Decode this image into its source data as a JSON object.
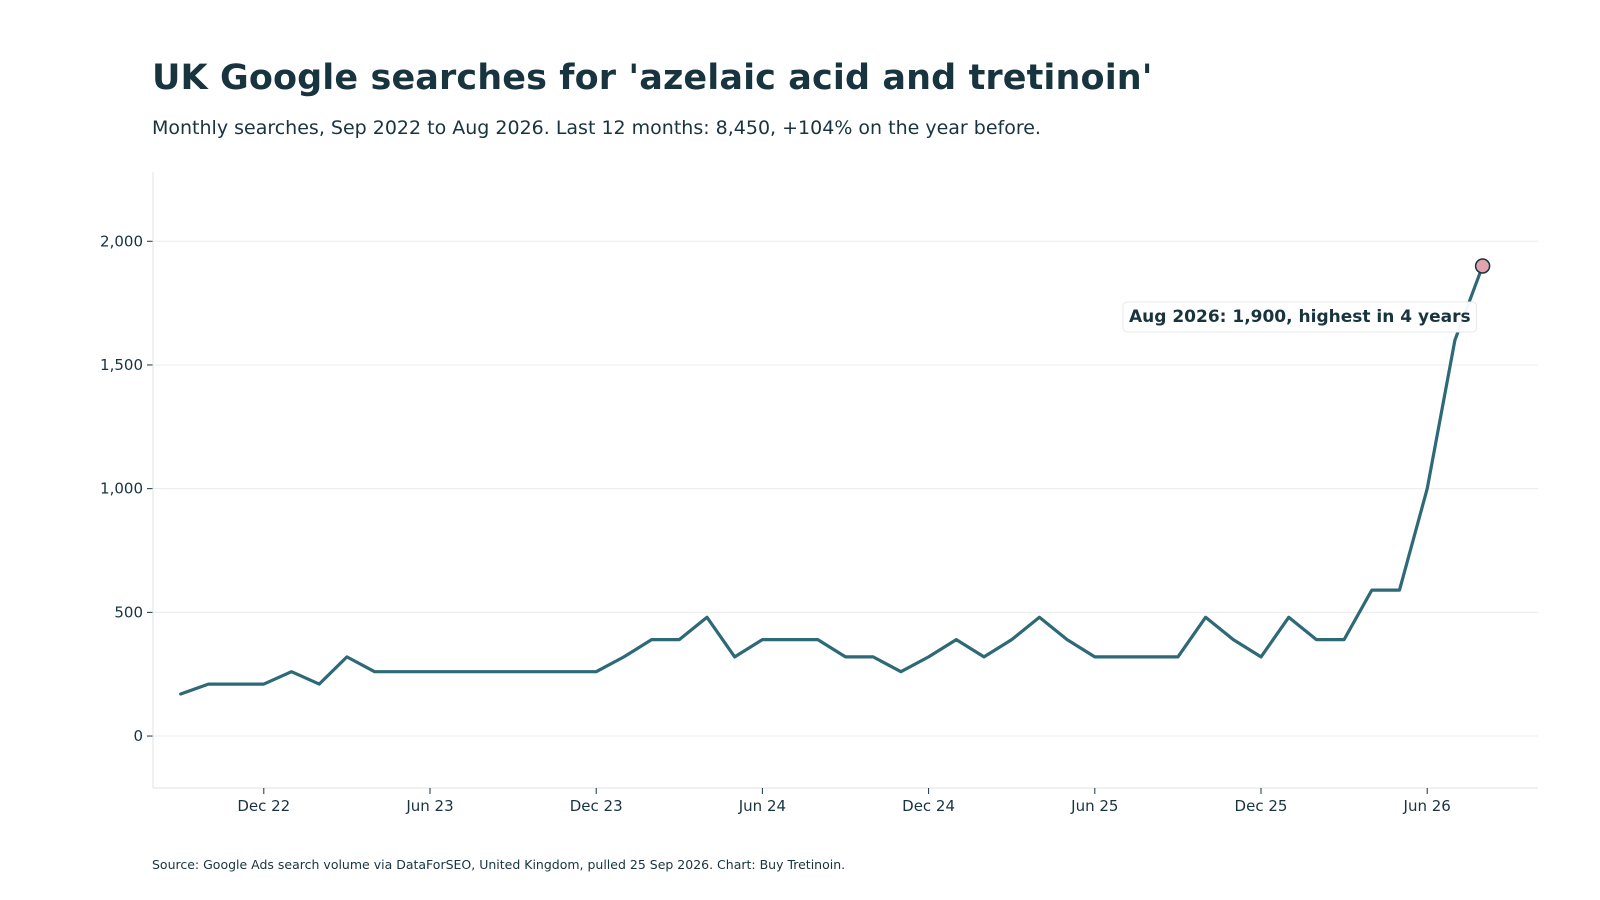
{
  "chart_data": {
    "type": "line",
    "title": "UK Google searches for 'azelaic acid and tretinoin'",
    "subtitle": "Monthly searches, Sep 2022 to Aug 2026. Last 12 months: 8,450, +104% on the year before.",
    "source": "Source: Google Ads search volume via DataForSEO, United Kingdom, pulled 25 Sep 2026. Chart: Buy Tretinoin.",
    "x": [
      "2022-09",
      "2022-10",
      "2022-11",
      "2022-12",
      "2023-01",
      "2023-02",
      "2023-03",
      "2023-04",
      "2023-05",
      "2023-06",
      "2023-07",
      "2023-08",
      "2023-09",
      "2023-10",
      "2023-11",
      "2023-12",
      "2024-01",
      "2024-02",
      "2024-03",
      "2024-04",
      "2024-05",
      "2024-06",
      "2024-07",
      "2024-08",
      "2024-09",
      "2024-10",
      "2024-11",
      "2024-12",
      "2025-01",
      "2025-02",
      "2025-03",
      "2025-04",
      "2025-05",
      "2025-06",
      "2025-07",
      "2025-08",
      "2025-09",
      "2025-10",
      "2025-11",
      "2025-12",
      "2026-01",
      "2026-02",
      "2026-03",
      "2026-04",
      "2026-05",
      "2026-06",
      "2026-07",
      "2026-08"
    ],
    "series": [
      {
        "values": [
          170,
          210,
          210,
          210,
          260,
          210,
          320,
          260,
          260,
          260,
          260,
          260,
          260,
          260,
          260,
          260,
          320,
          390,
          390,
          480,
          320,
          390,
          390,
          390,
          320,
          320,
          260,
          320,
          390,
          320,
          390,
          480,
          390,
          320,
          320,
          320,
          320,
          480,
          390,
          320,
          480,
          390,
          390,
          590,
          590,
          1000,
          1600,
          1900
        ]
      }
    ],
    "xlim": [
      "2022-08",
      "2026-10"
    ],
    "ylim": [
      -210,
      2280
    ],
    "x_ticks": [
      {
        "date": "2022-12",
        "label": "Dec 22"
      },
      {
        "date": "2023-06",
        "label": "Jun 23"
      },
      {
        "date": "2023-12",
        "label": "Dec 23"
      },
      {
        "date": "2024-06",
        "label": "Jun 24"
      },
      {
        "date": "2024-12",
        "label": "Dec 24"
      },
      {
        "date": "2025-06",
        "label": "Jun 25"
      },
      {
        "date": "2025-12",
        "label": "Dec 25"
      },
      {
        "date": "2026-06",
        "label": "Jun 26"
      }
    ],
    "y_ticks": [
      {
        "value": 0,
        "label": "0"
      },
      {
        "value": 500,
        "label": "500"
      },
      {
        "value": 1000,
        "label": "1,000"
      },
      {
        "value": 1500,
        "label": "1,500"
      },
      {
        "value": 2000,
        "label": "2,000"
      }
    ],
    "grid": "horizontal",
    "legend": "none",
    "annotation": {
      "date": "2026-08",
      "value": 1900,
      "text": "Aug 2026: 1,900, highest in 4 years"
    },
    "colors": {
      "line": "#2d6977",
      "highlight_marker": "#e2a3ad",
      "text": "#17343f",
      "grid": "#ececec",
      "axis": "#e2e2e2"
    }
  }
}
